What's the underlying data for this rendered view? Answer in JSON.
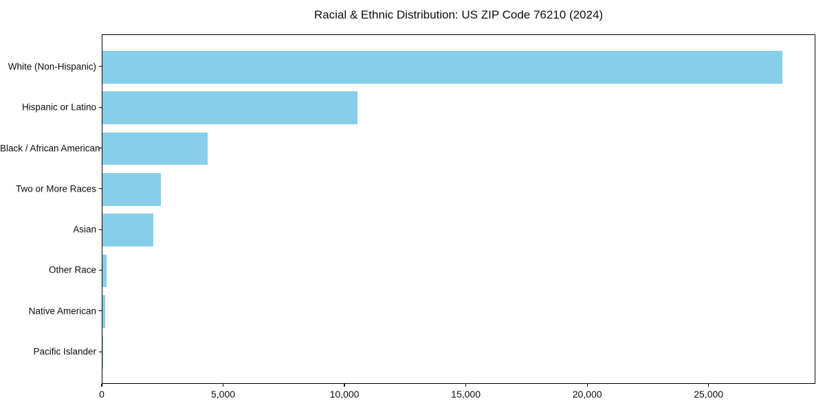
{
  "title": "Racial & Ethnic Distribution: US ZIP Code 76210 (2024)",
  "chart_data": {
    "type": "bar",
    "orientation": "horizontal",
    "title": "Racial & Ethnic Distribution: US ZIP Code 76210 (2024)",
    "categories": [
      "White (Non-Hispanic)",
      "Hispanic or Latino",
      "Black / African American",
      "Two or More Races",
      "Asian",
      "Other Race",
      "Native American",
      "Pacific Islander"
    ],
    "values": [
      28000,
      10500,
      4340,
      2410,
      2100,
      165,
      110,
      25
    ],
    "xlabel": "",
    "ylabel": "",
    "xlim": [
      0,
      29400
    ],
    "x_ticks": [
      0,
      5000,
      10000,
      15000,
      20000,
      25000
    ],
    "x_tick_labels": [
      "0",
      "5,000",
      "10,000",
      "15,000",
      "20,000",
      "25,000"
    ],
    "bar_color": "#87CEEB",
    "axis_color": "#000000",
    "grid": false,
    "legend": null
  }
}
